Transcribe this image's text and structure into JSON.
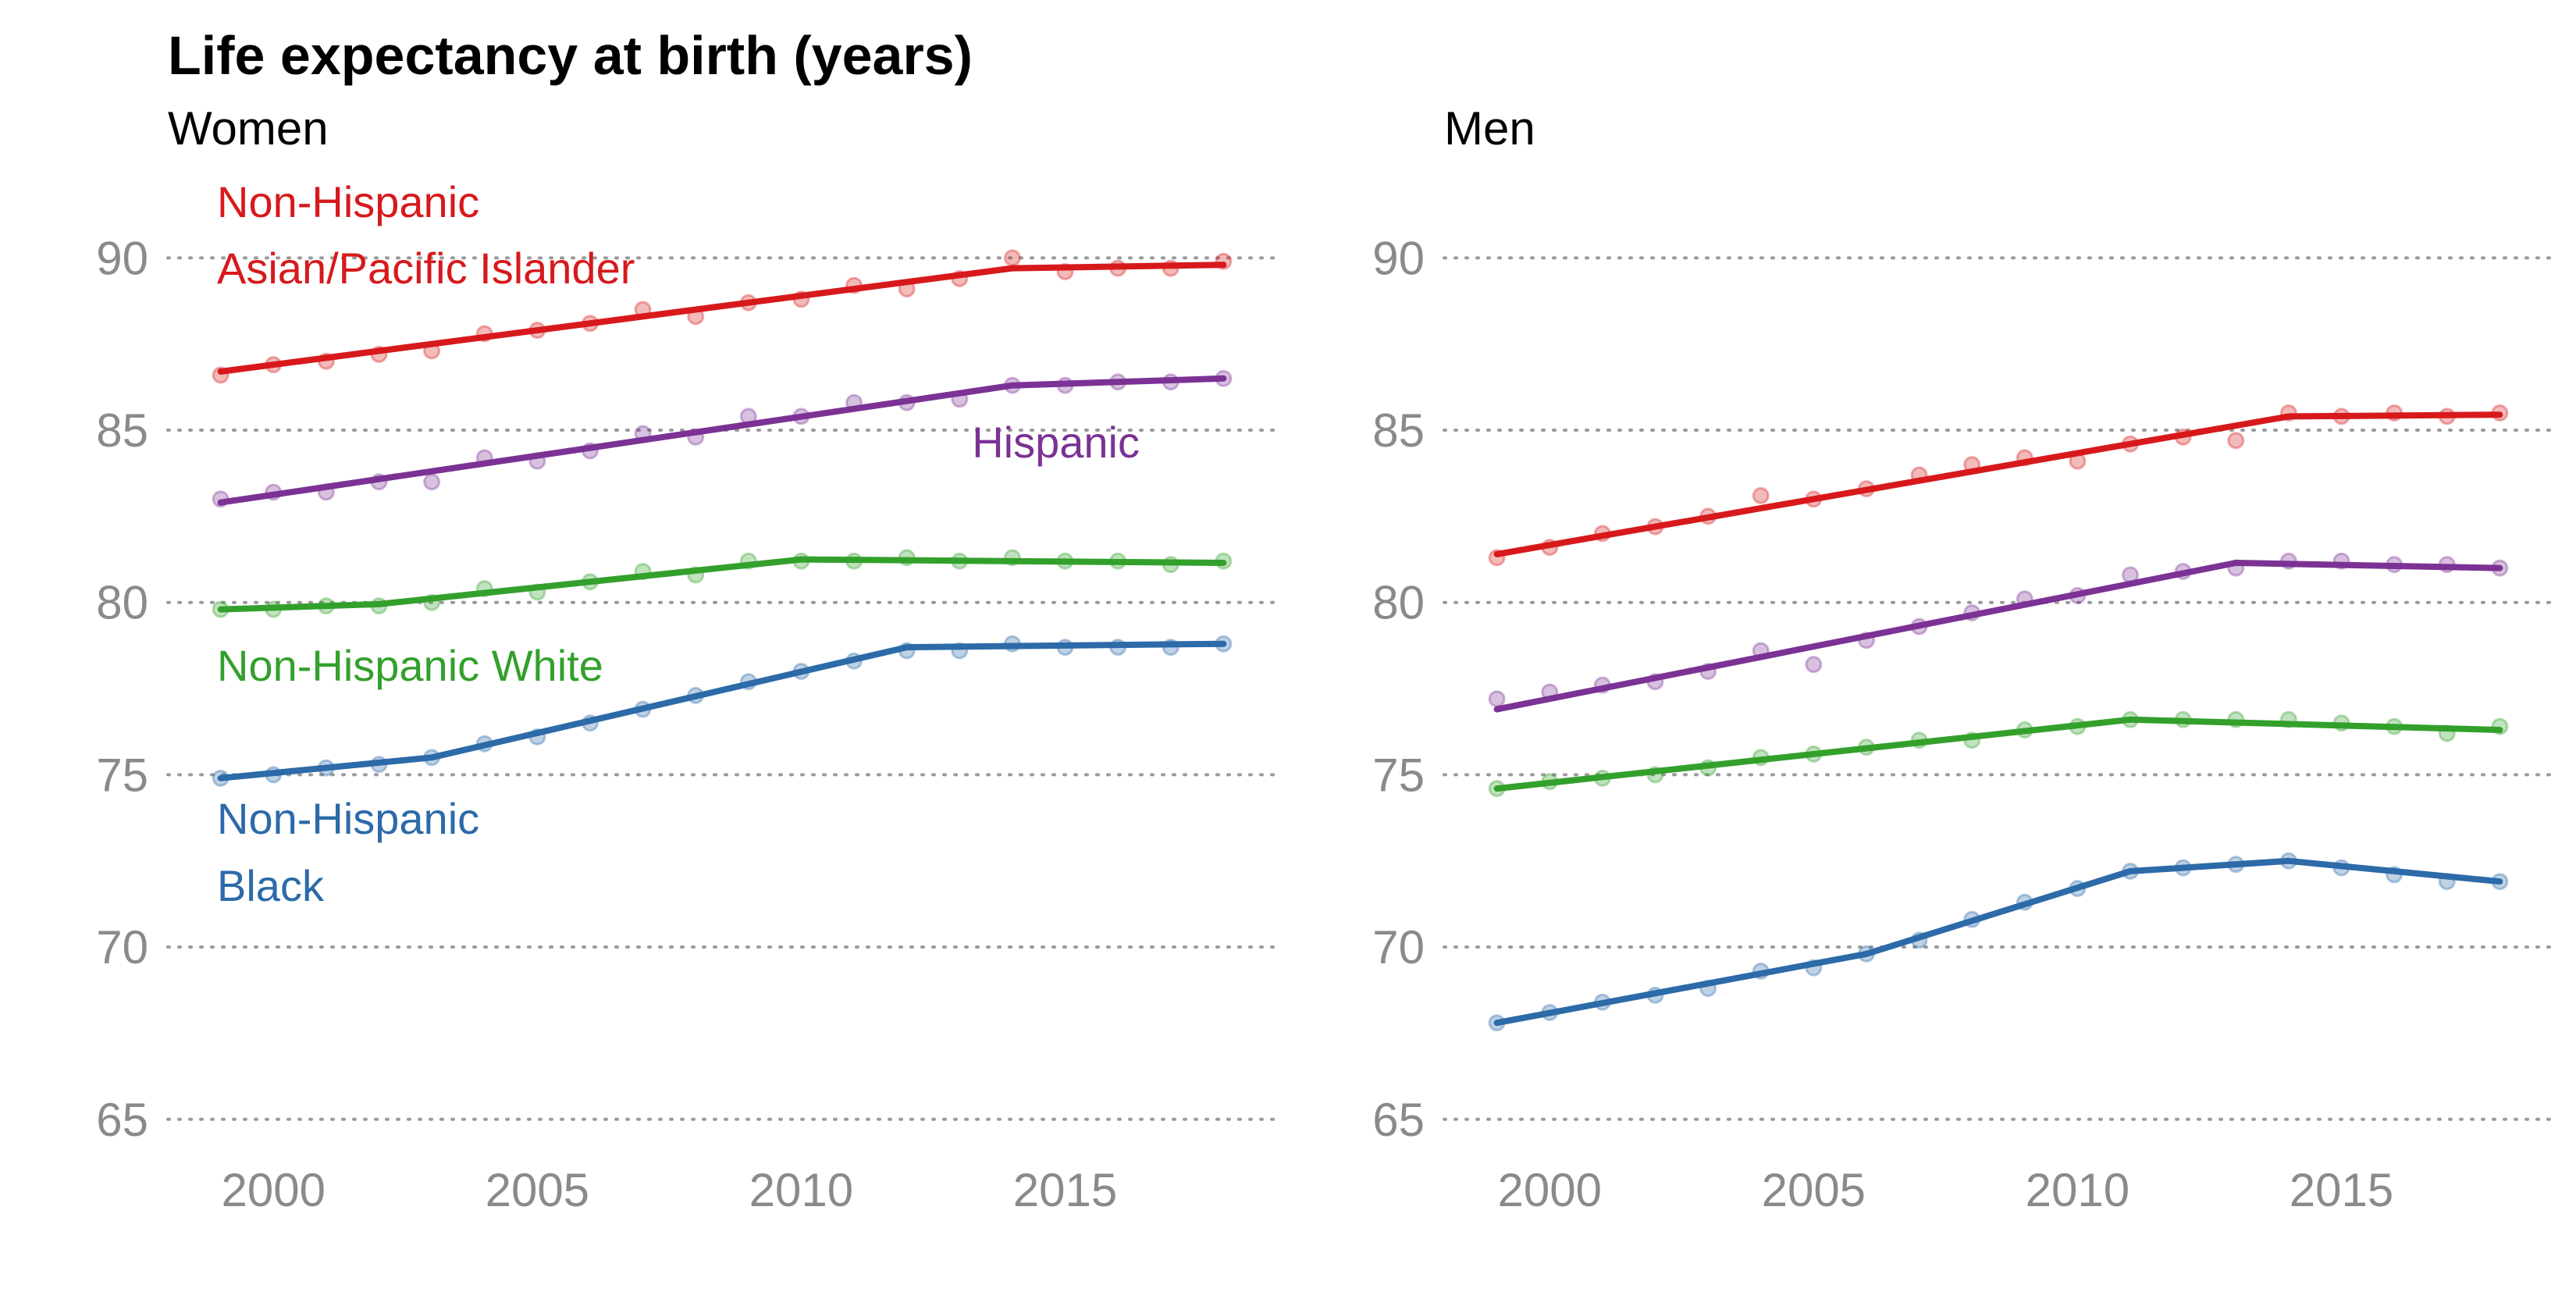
{
  "title": "Life expectancy at birth (years)",
  "colors": {
    "asian": "#d7191c",
    "hispanic": "#7b3294",
    "white": "#33a02c",
    "black": "#2c6aa8",
    "grid": "#9a9a9a",
    "tick": "#8a8a8a"
  },
  "chart_data": [
    {
      "type": "line",
      "subtitle": "Women",
      "xlim": [
        1998,
        2019
      ],
      "ylim": [
        63.5,
        92.5
      ],
      "yticks": [
        65,
        70,
        75,
        80,
        85,
        90
      ],
      "xticks": [
        2000,
        2005,
        2010,
        2015
      ],
      "grid": "horizontal dotted",
      "x": [
        1999,
        2000,
        2001,
        2002,
        2003,
        2004,
        2005,
        2006,
        2007,
        2008,
        2009,
        2010,
        2011,
        2012,
        2013,
        2014,
        2015,
        2016,
        2017,
        2018
      ],
      "series": [
        {
          "key": "asian",
          "label_lines": [
            "Non-Hispanic",
            "Asian/Pacific Islander"
          ],
          "points": [
            86.6,
            86.9,
            87.0,
            87.2,
            87.3,
            87.8,
            87.9,
            88.1,
            88.5,
            88.3,
            88.7,
            88.8,
            89.2,
            89.1,
            89.4,
            90.0,
            89.6,
            89.7,
            89.7,
            89.9
          ],
          "trend": [
            [
              1999,
              86.7
            ],
            [
              2014,
              89.7
            ],
            [
              2018,
              89.8
            ]
          ]
        },
        {
          "key": "hispanic",
          "label_lines": [
            "Hispanic"
          ],
          "points": [
            83.0,
            83.2,
            83.2,
            83.5,
            83.5,
            84.2,
            84.1,
            84.4,
            84.9,
            84.8,
            85.4,
            85.4,
            85.8,
            85.8,
            85.9,
            86.3,
            86.3,
            86.4,
            86.4,
            86.5
          ],
          "trend": [
            [
              1999,
              82.9
            ],
            [
              2014,
              86.3
            ],
            [
              2018,
              86.5
            ]
          ]
        },
        {
          "key": "white",
          "label_lines": [
            "Non-Hispanic White"
          ],
          "points": [
            79.8,
            79.8,
            79.9,
            79.9,
            80.0,
            80.4,
            80.3,
            80.6,
            80.9,
            80.8,
            81.2,
            81.2,
            81.2,
            81.3,
            81.2,
            81.3,
            81.2,
            81.2,
            81.1,
            81.2
          ],
          "trend": [
            [
              1999,
              79.8
            ],
            [
              2002,
              79.95
            ],
            [
              2010,
              81.25
            ],
            [
              2018,
              81.15
            ]
          ]
        },
        {
          "key": "black",
          "label_lines": [
            "Non-Hispanic",
            "Black"
          ],
          "points": [
            74.9,
            75.0,
            75.2,
            75.3,
            75.5,
            75.9,
            76.1,
            76.5,
            76.9,
            77.3,
            77.7,
            78.0,
            78.3,
            78.6,
            78.6,
            78.8,
            78.7,
            78.7,
            78.7,
            78.8
          ],
          "trend": [
            [
              1999,
              74.9
            ],
            [
              2003,
              75.5
            ],
            [
              2012,
              78.7
            ],
            [
              2018,
              78.8
            ]
          ]
        }
      ]
    },
    {
      "type": "line",
      "subtitle": "Men",
      "xlim": [
        1998,
        2019
      ],
      "ylim": [
        63.5,
        92.5
      ],
      "yticks": [
        65,
        70,
        75,
        80,
        85,
        90
      ],
      "xticks": [
        2000,
        2005,
        2010,
        2015
      ],
      "grid": "horizontal dotted",
      "x": [
        1999,
        2000,
        2001,
        2002,
        2003,
        2004,
        2005,
        2006,
        2007,
        2008,
        2009,
        2010,
        2011,
        2012,
        2013,
        2014,
        2015,
        2016,
        2017,
        2018
      ],
      "series": [
        {
          "key": "asian",
          "points": [
            81.3,
            81.6,
            82.0,
            82.2,
            82.5,
            83.1,
            83.0,
            83.3,
            83.7,
            84.0,
            84.2,
            84.1,
            84.6,
            84.8,
            84.7,
            85.5,
            85.4,
            85.5,
            85.4,
            85.5
          ],
          "trend": [
            [
              1999,
              81.4
            ],
            [
              2014,
              85.4
            ],
            [
              2018,
              85.45
            ]
          ]
        },
        {
          "key": "hispanic",
          "points": [
            77.2,
            77.4,
            77.6,
            77.7,
            78.0,
            78.6,
            78.2,
            78.9,
            79.3,
            79.7,
            80.1,
            80.2,
            80.8,
            80.9,
            81.0,
            81.2,
            81.2,
            81.1,
            81.1,
            81.0
          ],
          "trend": [
            [
              1999,
              76.9
            ],
            [
              2013,
              81.15
            ],
            [
              2018,
              81.0
            ]
          ]
        },
        {
          "key": "white",
          "points": [
            74.6,
            74.8,
            74.9,
            75.0,
            75.2,
            75.5,
            75.6,
            75.8,
            76.0,
            76.0,
            76.3,
            76.4,
            76.6,
            76.6,
            76.6,
            76.6,
            76.5,
            76.4,
            76.2,
            76.4
          ],
          "trend": [
            [
              1999,
              74.6
            ],
            [
              2011,
              76.6
            ],
            [
              2018,
              76.3
            ]
          ]
        },
        {
          "key": "black",
          "points": [
            67.8,
            68.1,
            68.4,
            68.6,
            68.8,
            69.3,
            69.4,
            69.8,
            70.2,
            70.8,
            71.3,
            71.7,
            72.2,
            72.3,
            72.4,
            72.5,
            72.3,
            72.1,
            71.9,
            71.9
          ],
          "trend": [
            [
              1999,
              67.8
            ],
            [
              2006,
              69.8
            ],
            [
              2011,
              72.2
            ],
            [
              2014,
              72.5
            ],
            [
              2018,
              71.9
            ]
          ]
        }
      ]
    }
  ]
}
